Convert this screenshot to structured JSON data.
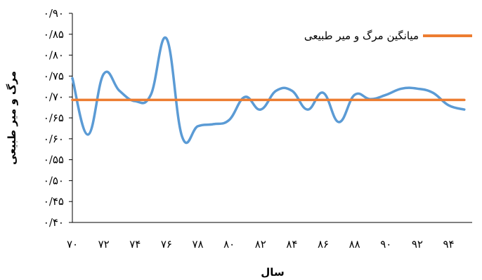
{
  "chart_data": {
    "type": "line",
    "xlabel": "سال",
    "ylabel": "مرگ و میر طبیعی",
    "ylim": [
      0.4,
      0.9
    ],
    "xlim": [
      70,
      95.5
    ],
    "y_ticks": [
      {
        "value": 0.4,
        "label": "۰/۴۰"
      },
      {
        "value": 0.45,
        "label": "۰/۴۵"
      },
      {
        "value": 0.5,
        "label": "۰/۵۰"
      },
      {
        "value": 0.55,
        "label": "۰/۵۵"
      },
      {
        "value": 0.6,
        "label": "۰/۶۰"
      },
      {
        "value": 0.65,
        "label": "۰/۶۵"
      },
      {
        "value": 0.7,
        "label": "۰/۷۰"
      },
      {
        "value": 0.75,
        "label": "۰/۷۵"
      },
      {
        "value": 0.8,
        "label": "۰/۸۰"
      },
      {
        "value": 0.85,
        "label": "۰/۸۵"
      },
      {
        "value": 0.9,
        "label": "۰/۹۰"
      }
    ],
    "x_ticks": [
      {
        "value": 70,
        "label": "۷۰"
      },
      {
        "value": 72,
        "label": "۷۲"
      },
      {
        "value": 74,
        "label": "۷۴"
      },
      {
        "value": 76,
        "label": "۷۶"
      },
      {
        "value": 78,
        "label": "۷۸"
      },
      {
        "value": 80,
        "label": "۸۰"
      },
      {
        "value": 82,
        "label": "۸۲"
      },
      {
        "value": 84,
        "label": "۸۴"
      },
      {
        "value": 86,
        "label": "۸۶"
      },
      {
        "value": 88,
        "label": "۸۸"
      },
      {
        "value": 90,
        "label": "۹۰"
      },
      {
        "value": 92,
        "label": "۹۲"
      },
      {
        "value": 94,
        "label": "۹۴"
      }
    ],
    "series": [
      {
        "color": "#5b9bd5",
        "x": [
          70,
          71,
          72,
          73,
          74,
          75,
          76,
          77,
          78,
          79,
          80,
          81,
          82,
          83,
          84,
          85,
          86,
          87,
          88,
          89,
          90,
          91,
          92,
          93,
          94,
          95
        ],
        "y": [
          0.745,
          0.61,
          0.755,
          0.715,
          0.69,
          0.705,
          0.84,
          0.605,
          0.63,
          0.635,
          0.645,
          0.7,
          0.67,
          0.715,
          0.715,
          0.67,
          0.71,
          0.64,
          0.705,
          0.695,
          0.705,
          0.72,
          0.72,
          0.71,
          0.68,
          0.67
        ]
      },
      {
        "name": "میانگین مرگ و میر طبیعی",
        "color": "#ed7d31",
        "x": [
          70,
          95
        ],
        "y": [
          0.693,
          0.693
        ]
      }
    ],
    "legend": {
      "placement": "top-right"
    },
    "grid": false
  }
}
